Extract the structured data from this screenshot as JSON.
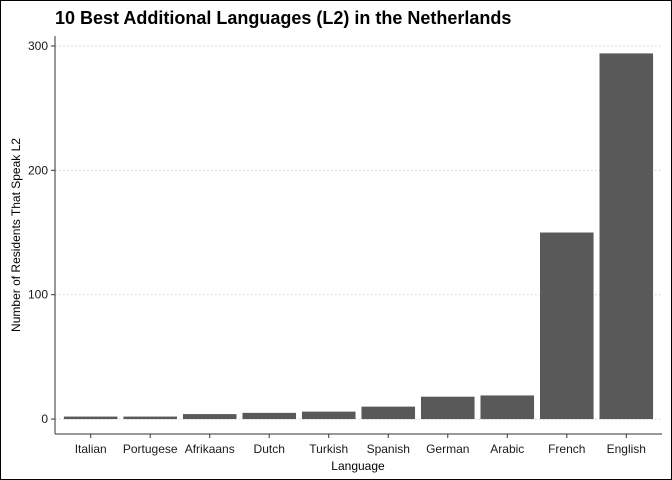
{
  "chart_data": {
    "type": "bar",
    "title": "10 Best Additional Languages (L2) in the Netherlands",
    "xlabel": "Language",
    "ylabel": "Number of Residents That Speak L2",
    "categories": [
      "Italian",
      "Portugese",
      "Afrikaans",
      "Dutch",
      "Turkish",
      "Spanish",
      "German",
      "Arabic",
      "French",
      "English"
    ],
    "values": [
      2,
      2,
      4,
      5,
      6,
      10,
      18,
      19,
      150,
      294
    ],
    "ylim": [
      -12,
      308
    ],
    "yticks": [
      0,
      100,
      200,
      300
    ],
    "grid": true,
    "bar_color": "#595959",
    "legend": "none"
  }
}
